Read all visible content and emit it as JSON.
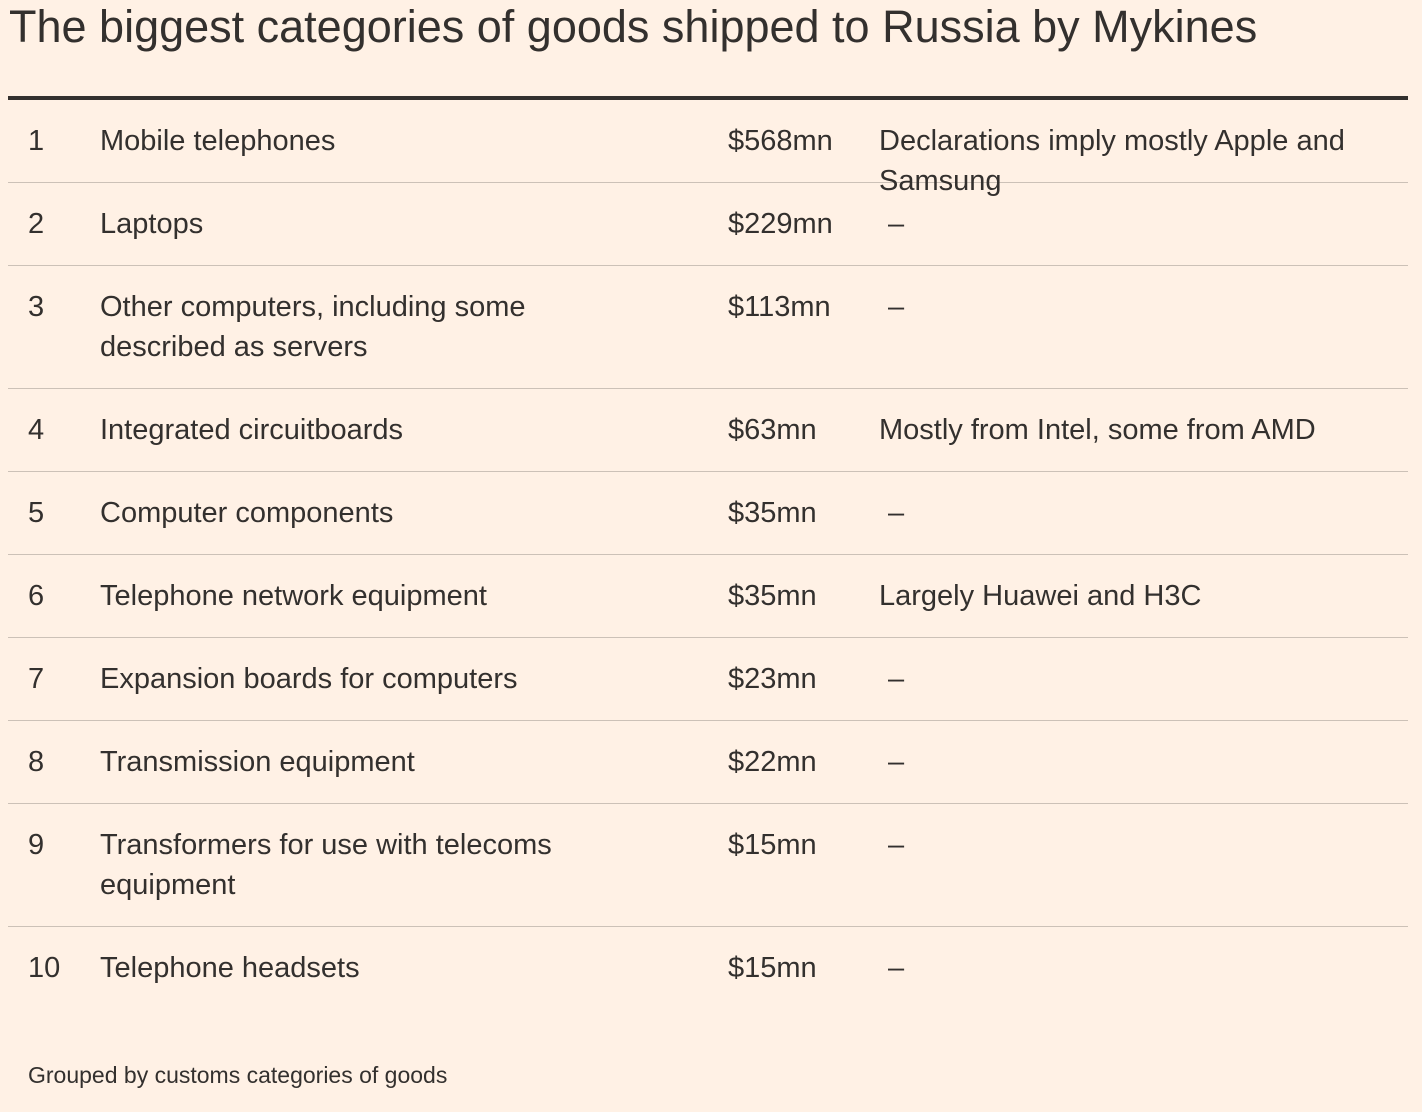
{
  "chart_data": {
    "type": "table",
    "title": "The biggest categories of goods shipped to Russia by Mykines",
    "rows": [
      {
        "rank": "1",
        "name": [
          "Mobile telephones"
        ],
        "value": "$568mn",
        "value_usd_mn": 568,
        "note": [
          "Declarations imply mostly Apple and",
          "Samsung"
        ]
      },
      {
        "rank": "2",
        "name": [
          "Laptops"
        ],
        "value": "$229mn",
        "value_usd_mn": 229,
        "note": [
          "–"
        ]
      },
      {
        "rank": "3",
        "name": [
          "Other computers, including some",
          "described as servers"
        ],
        "value": "$113mn",
        "value_usd_mn": 113,
        "note": [
          "–"
        ]
      },
      {
        "rank": "4",
        "name": [
          "Integrated circuitboards"
        ],
        "value": "$63mn",
        "value_usd_mn": 63,
        "note": [
          "Mostly from Intel, some from AMD"
        ]
      },
      {
        "rank": "5",
        "name": [
          "Computer components"
        ],
        "value": "$35mn",
        "value_usd_mn": 35,
        "note": [
          "–"
        ]
      },
      {
        "rank": "6",
        "name": [
          "Telephone network equipment"
        ],
        "value": "$35mn",
        "value_usd_mn": 35,
        "note": [
          "Largely Huawei and H3C"
        ]
      },
      {
        "rank": "7",
        "name": [
          "Expansion boards for computers"
        ],
        "value": "$23mn",
        "value_usd_mn": 23,
        "note": [
          "–"
        ]
      },
      {
        "rank": "8",
        "name": [
          "Transmission equipment"
        ],
        "value": "$22mn",
        "value_usd_mn": 22,
        "note": [
          "–"
        ]
      },
      {
        "rank": "9",
        "name": [
          "Transformers for use with telecoms",
          "equipment"
        ],
        "value": "$15mn",
        "value_usd_mn": 15,
        "note": [
          "–"
        ]
      },
      {
        "rank": "10",
        "name": [
          "Telephone headsets"
        ],
        "value": "$15mn",
        "value_usd_mn": 15,
        "note": [
          "–"
        ]
      }
    ],
    "footnote": "Grouped by customs categories of goods"
  },
  "colors": {
    "background": "#FFF1E5",
    "text": "#33302E",
    "rule": "#CCC1B7"
  }
}
